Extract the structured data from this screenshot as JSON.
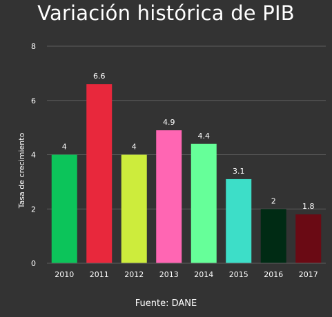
{
  "chart_data": {
    "type": "bar",
    "title": "Variación histórica de PIB",
    "ylabel": "Tasa de crecimiento",
    "xlabel": "",
    "source": "Fuente: DANE",
    "categories": [
      "2010",
      "2011",
      "2012",
      "2013",
      "2014",
      "2015",
      "2016",
      "2017"
    ],
    "values": [
      4,
      6.6,
      4,
      4.9,
      4.4,
      3.1,
      2,
      1.8
    ],
    "value_labels": [
      "4",
      "6.6",
      "4",
      "4.9",
      "4.4",
      "3.1",
      "2",
      "1.8"
    ],
    "colors": [
      "#0cc45a",
      "#e8283c",
      "#cdec3c",
      "#ff66b3",
      "#66ff99",
      "#3ddec8",
      "#002b14",
      "#6a0a14"
    ],
    "ylim": [
      0,
      8
    ],
    "yticks": [
      0,
      2,
      4,
      6,
      8
    ],
    "grid": true,
    "legend": "none"
  }
}
